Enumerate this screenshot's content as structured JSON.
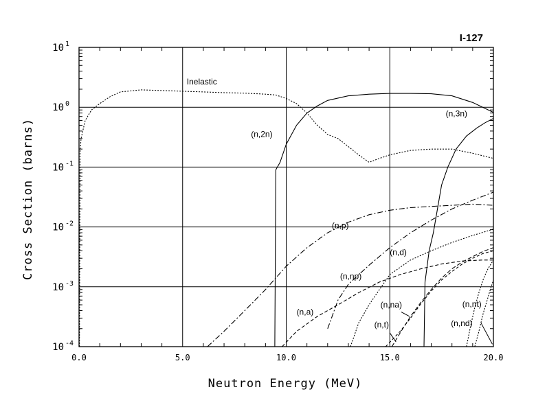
{
  "chart_data": {
    "type": "line",
    "title": "I-127",
    "xlabel": "Neutron Energy (MeV)",
    "ylabel": "Cross Section (barns)",
    "xlim": [
      0,
      20
    ],
    "ylim": [
      0.0001,
      10
    ],
    "yscale": "log",
    "grid": true,
    "x_ticks": [
      {
        "value": 0,
        "label": "0.0"
      },
      {
        "value": 5,
        "label": "5.0"
      },
      {
        "value": 10,
        "label": "10.0"
      },
      {
        "value": 15,
        "label": "15.0"
      },
      {
        "value": 20,
        "label": "20.0"
      }
    ],
    "y_ticks": [
      {
        "value": 10,
        "base": "10",
        "exp": "1"
      },
      {
        "value": 1,
        "base": "10",
        "exp": "0"
      },
      {
        "value": 0.1,
        "base": "10",
        "exp": "-1"
      },
      {
        "value": 0.01,
        "base": "10",
        "exp": "-2"
      },
      {
        "value": 0.001,
        "base": "10",
        "exp": "-3"
      },
      {
        "value": 0.0001,
        "base": "10",
        "exp": "-4"
      }
    ],
    "series": [
      {
        "name": "Inelastic",
        "dash": "2,2",
        "label_at": [
          5.2,
          2.4
        ],
        "points": [
          [
            0.02,
            0.0001
          ],
          [
            0.05,
            0.18
          ],
          [
            0.1,
            0.3
          ],
          [
            0.3,
            0.6
          ],
          [
            0.6,
            0.9
          ],
          [
            1,
            1.15
          ],
          [
            1.5,
            1.5
          ],
          [
            2,
            1.8
          ],
          [
            3,
            1.95
          ],
          [
            4,
            1.9
          ],
          [
            5,
            1.85
          ],
          [
            6,
            1.8
          ],
          [
            7,
            1.75
          ],
          [
            8,
            1.72
          ],
          [
            9,
            1.65
          ],
          [
            9.5,
            1.6
          ],
          [
            10,
            1.4
          ],
          [
            10.5,
            1.15
          ],
          [
            11,
            0.8
          ],
          [
            11.5,
            0.5
          ],
          [
            12,
            0.35
          ],
          [
            12.5,
            0.3
          ],
          [
            13,
            0.22
          ],
          [
            13.5,
            0.16
          ],
          [
            14,
            0.12
          ],
          [
            14.5,
            0.14
          ],
          [
            15,
            0.16
          ],
          [
            16,
            0.19
          ],
          [
            17,
            0.2
          ],
          [
            18,
            0.2
          ],
          [
            19,
            0.17
          ],
          [
            20,
            0.14
          ]
        ]
      },
      {
        "name": "(n,2n)",
        "dash": "",
        "label_at": [
          8.3,
          0.32
        ],
        "points": [
          [
            9.45,
            0.0001
          ],
          [
            9.5,
            0.09
          ],
          [
            9.7,
            0.12
          ],
          [
            10,
            0.24
          ],
          [
            10.5,
            0.5
          ],
          [
            11,
            0.8
          ],
          [
            11.5,
            1.05
          ],
          [
            12,
            1.3
          ],
          [
            13,
            1.55
          ],
          [
            14,
            1.65
          ],
          [
            15,
            1.7
          ],
          [
            16,
            1.7
          ],
          [
            17,
            1.68
          ],
          [
            18,
            1.55
          ],
          [
            19,
            1.2
          ],
          [
            20,
            0.82
          ]
        ]
      },
      {
        "name": "(n,3n)",
        "dash": "",
        "label_at": [
          17.7,
          0.7
        ],
        "points": [
          [
            16.65,
            0.0001
          ],
          [
            16.7,
            0.0012
          ],
          [
            16.9,
            0.004
          ],
          [
            17.1,
            0.008
          ],
          [
            17.3,
            0.02
          ],
          [
            17.5,
            0.05
          ],
          [
            17.8,
            0.1
          ],
          [
            18.2,
            0.2
          ],
          [
            18.7,
            0.33
          ],
          [
            19.2,
            0.45
          ],
          [
            19.6,
            0.55
          ],
          [
            20,
            0.65
          ]
        ]
      },
      {
        "name": "(n,p)",
        "dash": "8,3,2,3",
        "label_at": [
          12.2,
          0.0095
        ],
        "points": [
          [
            6.2,
            0.0001
          ],
          [
            7,
            0.00018
          ],
          [
            8,
            0.0004
          ],
          [
            9,
            0.0009
          ],
          [
            10,
            0.0022
          ],
          [
            11,
            0.0045
          ],
          [
            12,
            0.008
          ],
          [
            13,
            0.012
          ],
          [
            14,
            0.016
          ],
          [
            15,
            0.019
          ],
          [
            16,
            0.021
          ],
          [
            17,
            0.022
          ],
          [
            18,
            0.023
          ],
          [
            19,
            0.024
          ],
          [
            20,
            0.023
          ]
        ]
      },
      {
        "name": "(n,np)",
        "dash": "8,3,2,3",
        "label_at": [
          12.6,
          0.00135
        ],
        "points": [
          [
            12,
            0.0002
          ],
          [
            12.5,
            0.0006
          ],
          [
            13,
            0.0011
          ],
          [
            14,
            0.0023
          ],
          [
            15,
            0.0045
          ],
          [
            16,
            0.008
          ],
          [
            17,
            0.013
          ],
          [
            18,
            0.02
          ],
          [
            19,
            0.028
          ],
          [
            20,
            0.038
          ]
        ]
      },
      {
        "name": "(n,d)",
        "dash": "2,2",
        "label_at": [
          15.0,
          0.0034
        ],
        "points": [
          [
            13.1,
            0.0001
          ],
          [
            13.5,
            0.00025
          ],
          [
            14,
            0.0005
          ],
          [
            14.5,
            0.0009
          ],
          [
            15,
            0.0016
          ],
          [
            16,
            0.0028
          ],
          [
            17,
            0.004
          ],
          [
            18,
            0.0055
          ],
          [
            19,
            0.0072
          ],
          [
            20,
            0.0092
          ]
        ]
      },
      {
        "name": "(n,a)",
        "dash": "5,3",
        "label_at": [
          10.5,
          0.00034
        ],
        "points": [
          [
            9.8,
            0.0001
          ],
          [
            10.5,
            0.00018
          ],
          [
            11.5,
            0.00032
          ],
          [
            12.5,
            0.0005
          ],
          [
            13.5,
            0.0008
          ],
          [
            14.5,
            0.0012
          ],
          [
            15.5,
            0.0016
          ],
          [
            16.5,
            0.002
          ],
          [
            17.5,
            0.0024
          ],
          [
            18.5,
            0.0027
          ],
          [
            19.5,
            0.0028
          ],
          [
            20,
            0.0028
          ]
        ]
      },
      {
        "name": "(n,na)",
        "dash": "6,3",
        "label_at": [
          14.55,
          0.00045
        ],
        "points": [
          [
            15.1,
            0.0001
          ],
          [
            15.5,
            0.00017
          ],
          [
            16,
            0.00032
          ],
          [
            16.5,
            0.00055
          ],
          [
            17,
            0.0009
          ],
          [
            17.5,
            0.0014
          ],
          [
            18,
            0.002
          ],
          [
            18.5,
            0.0026
          ],
          [
            19,
            0.0032
          ],
          [
            19.5,
            0.0039
          ],
          [
            20,
            0.0045
          ]
        ]
      },
      {
        "name": "(n,t)",
        "dash": "4,3",
        "label_at": [
          14.25,
          0.00021
        ],
        "points": [
          [
            14.8,
            0.0001
          ],
          [
            15.5,
            0.00018
          ],
          [
            16,
            0.0003
          ],
          [
            16.5,
            0.00052
          ],
          [
            17,
            0.00085
          ],
          [
            17.5,
            0.0013
          ],
          [
            18,
            0.0018
          ],
          [
            18.5,
            0.0024
          ],
          [
            19,
            0.003
          ],
          [
            19.5,
            0.0036
          ],
          [
            20,
            0.004
          ]
        ]
      },
      {
        "name": "(n,nt)",
        "dash": "2,2",
        "label_at": [
          18.5,
          0.00046
        ],
        "points": [
          [
            19.1,
            0.0001
          ],
          [
            19.3,
            0.00018
          ],
          [
            19.5,
            0.00035
          ],
          [
            19.7,
            0.0006
          ],
          [
            19.85,
            0.0009
          ],
          [
            20,
            0.0013
          ]
        ]
      },
      {
        "name": "(n,nd)",
        "dash": "2,2",
        "label_at": [
          17.95,
          0.00022
        ],
        "points": [
          [
            18.7,
            0.0001
          ],
          [
            18.9,
            0.00022
          ],
          [
            19.1,
            0.00045
          ],
          [
            19.3,
            0.0008
          ],
          [
            19.5,
            0.0013
          ],
          [
            19.7,
            0.0019
          ],
          [
            20,
            0.0028
          ]
        ]
      }
    ]
  }
}
